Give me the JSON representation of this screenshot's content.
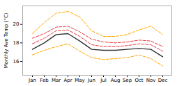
{
  "chart_data": {
    "type": "line",
    "categories": [
      "Jan",
      "Feb",
      "Mar",
      "Apr",
      "May",
      "Jun",
      "Jul",
      "Aug",
      "Sep",
      "Oct",
      "Nov",
      "Dec"
    ],
    "series": [
      {
        "color": "#FFA500",
        "line_style": "dashed",
        "values": [
          19.0,
          20.2,
          21.2,
          21.4,
          20.8,
          19.3,
          18.7,
          18.7,
          18.9,
          19.4,
          19.8,
          18.9
        ]
      },
      {
        "color": "#FFA500",
        "line_style": "dashed",
        "values": [
          16.7,
          17.2,
          17.6,
          17.9,
          17.1,
          16.4,
          16.2,
          16.3,
          16.4,
          16.7,
          16.3,
          15.5
        ]
      },
      {
        "color": "#E8333A",
        "line_style": "dashed",
        "values": [
          18.5,
          19.0,
          19.7,
          19.8,
          19.2,
          18.4,
          18.1,
          18.0,
          18.1,
          18.3,
          18.2,
          17.6
        ]
      },
      {
        "color": "#E8333A",
        "line_style": "dashed",
        "values": [
          17.9,
          18.5,
          19.3,
          19.4,
          18.7,
          17.8,
          17.6,
          17.6,
          17.7,
          17.9,
          17.8,
          17.1
        ]
      },
      {
        "color": "#333333",
        "line_style": "solid",
        "values": [
          17.3,
          18.0,
          18.9,
          19.0,
          18.2,
          17.3,
          17.2,
          17.2,
          17.3,
          17.4,
          17.3,
          16.5
        ]
      }
    ],
    "ylabel": "Monthly Ave Temp (°C)",
    "ylim": [
      14.5,
      22.0
    ],
    "yticks": [
      16,
      18,
      20
    ],
    "grid": false
  }
}
